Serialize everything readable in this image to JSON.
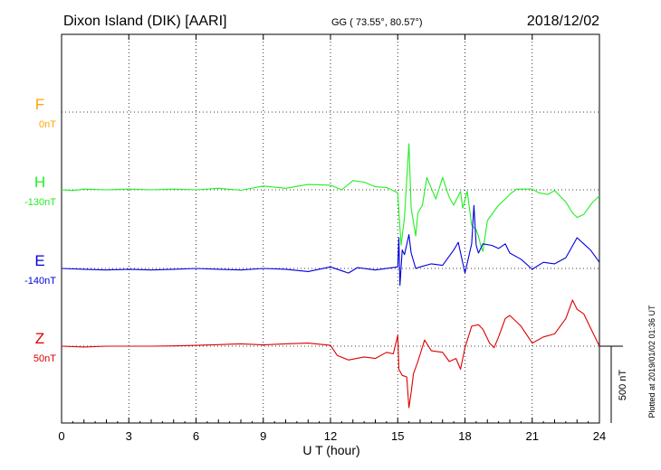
{
  "header": {
    "station": "Dixon Island (DIK)  [AARI]",
    "coords": "GG ( 73.55°,  80.57°)",
    "date": "2018/12/02"
  },
  "footer": {
    "plotted": "Plotted at 2019/01/02 01:36 UT"
  },
  "colors": {
    "F": "#ffa500",
    "H": "#22ee22",
    "E": "#0000dd",
    "Z": "#dd0000"
  },
  "chart_data": {
    "type": "line",
    "xlabel": "U T (hour)",
    "xlim": [
      0,
      24
    ],
    "xticks": [
      "0",
      "3",
      "6",
      "9",
      "12",
      "15",
      "18",
      "21",
      "24"
    ],
    "grid": true,
    "scale_bar": {
      "label": "500 nT",
      "value_nT": 500
    },
    "components": [
      {
        "name": "F",
        "baseline_label": "0nT",
        "baseline_nT": 0,
        "color": "#ffa500",
        "points": []
      },
      {
        "name": "H",
        "baseline_label": "-130nT",
        "baseline_nT": -130,
        "color": "#22ee22",
        "points": [
          [
            0,
            0
          ],
          [
            0.5,
            -5
          ],
          [
            1,
            5
          ],
          [
            2,
            0
          ],
          [
            3,
            5
          ],
          [
            4,
            0
          ],
          [
            5,
            5
          ],
          [
            6,
            0
          ],
          [
            7,
            10
          ],
          [
            8,
            -3
          ],
          [
            9,
            25
          ],
          [
            10,
            10
          ],
          [
            11,
            35
          ],
          [
            12,
            30
          ],
          [
            12.5,
            0
          ],
          [
            13,
            60
          ],
          [
            13.5,
            50
          ],
          [
            14,
            20
          ],
          [
            14.5,
            15
          ],
          [
            15,
            -20
          ],
          [
            15.1,
            -250
          ],
          [
            15.15,
            -360
          ],
          [
            15.3,
            -180
          ],
          [
            15.5,
            300
          ],
          [
            15.6,
            -120
          ],
          [
            15.8,
            -300
          ],
          [
            15.9,
            -150
          ],
          [
            16.1,
            -100
          ],
          [
            16.3,
            80
          ],
          [
            16.7,
            -60
          ],
          [
            17,
            80
          ],
          [
            17.3,
            -50
          ],
          [
            17.5,
            -100
          ],
          [
            17.8,
            -10
          ],
          [
            17.9,
            -120
          ],
          [
            18.1,
            -10
          ],
          [
            18.3,
            -230
          ],
          [
            18.5,
            -260
          ],
          [
            18.6,
            -300
          ],
          [
            18.7,
            -360
          ],
          [
            18.8,
            -400
          ],
          [
            18.9,
            -300
          ],
          [
            19,
            -200
          ],
          [
            19.5,
            -100
          ],
          [
            19.8,
            -60
          ],
          [
            20,
            -30
          ],
          [
            20.3,
            5
          ],
          [
            20.6,
            5
          ],
          [
            21,
            5
          ],
          [
            21.3,
            -20
          ],
          [
            21.7,
            -30
          ],
          [
            22,
            -5
          ],
          [
            22.5,
            -80
          ],
          [
            22.8,
            -150
          ],
          [
            23,
            -180
          ],
          [
            23.3,
            -160
          ],
          [
            23.7,
            -80
          ],
          [
            24,
            -40
          ]
        ]
      },
      {
        "name": "E",
        "baseline_label": "-140nT",
        "baseline_nT": -140,
        "color": "#0000dd",
        "points": [
          [
            0,
            0
          ],
          [
            1,
            -5
          ],
          [
            2,
            -10
          ],
          [
            3,
            -5
          ],
          [
            4,
            -10
          ],
          [
            5,
            -5
          ],
          [
            6,
            0
          ],
          [
            7,
            -5
          ],
          [
            8,
            -10
          ],
          [
            9,
            0
          ],
          [
            10,
            -5
          ],
          [
            11,
            -20
          ],
          [
            12,
            10
          ],
          [
            12.8,
            -30
          ],
          [
            13.2,
            5
          ],
          [
            14,
            -10
          ],
          [
            15,
            10
          ],
          [
            15.05,
            200
          ],
          [
            15.1,
            -110
          ],
          [
            15.2,
            120
          ],
          [
            15.3,
            90
          ],
          [
            15.5,
            220
          ],
          [
            15.6,
            100
          ],
          [
            15.8,
            0
          ],
          [
            16,
            10
          ],
          [
            16.5,
            30
          ],
          [
            17,
            20
          ],
          [
            17.5,
            120
          ],
          [
            17.7,
            170
          ],
          [
            18,
            -30
          ],
          [
            18.3,
            160
          ],
          [
            18.4,
            410
          ],
          [
            18.5,
            150
          ],
          [
            18.6,
            100
          ],
          [
            18.8,
            160
          ],
          [
            19.2,
            150
          ],
          [
            19.5,
            130
          ],
          [
            19.8,
            160
          ],
          [
            20,
            100
          ],
          [
            20.5,
            60
          ],
          [
            21,
            -5
          ],
          [
            21.5,
            40
          ],
          [
            22,
            30
          ],
          [
            22.5,
            70
          ],
          [
            23,
            200
          ],
          [
            23.3,
            160
          ],
          [
            23.6,
            120
          ],
          [
            24,
            40
          ]
        ]
      },
      {
        "name": "Z",
        "baseline_label": "50nT",
        "baseline_nT": 50,
        "color": "#dd0000",
        "points": [
          [
            0,
            0
          ],
          [
            1,
            -5
          ],
          [
            2,
            0
          ],
          [
            3,
            0
          ],
          [
            4,
            0
          ],
          [
            5,
            2
          ],
          [
            6,
            5
          ],
          [
            7,
            10
          ],
          [
            8,
            15
          ],
          [
            9,
            8
          ],
          [
            10,
            15
          ],
          [
            11,
            20
          ],
          [
            12,
            5
          ],
          [
            12.3,
            -60
          ],
          [
            12.8,
            -90
          ],
          [
            13.5,
            -70
          ],
          [
            14,
            -80
          ],
          [
            14.5,
            -40
          ],
          [
            14.8,
            -50
          ],
          [
            15,
            70
          ],
          [
            15.05,
            -150
          ],
          [
            15.2,
            -190
          ],
          [
            15.4,
            -200
          ],
          [
            15.5,
            -400
          ],
          [
            15.6,
            -300
          ],
          [
            15.7,
            -180
          ],
          [
            15.9,
            -100
          ],
          [
            16.2,
            40
          ],
          [
            16.5,
            -30
          ],
          [
            17,
            -40
          ],
          [
            17.3,
            -100
          ],
          [
            17.6,
            -80
          ],
          [
            17.8,
            -150
          ],
          [
            18,
            -10
          ],
          [
            18.3,
            130
          ],
          [
            18.6,
            140
          ],
          [
            18.8,
            110
          ],
          [
            19.1,
            20
          ],
          [
            19.3,
            -10
          ],
          [
            19.5,
            60
          ],
          [
            19.8,
            180
          ],
          [
            20,
            200
          ],
          [
            20.5,
            130
          ],
          [
            21,
            20
          ],
          [
            21.5,
            60
          ],
          [
            22,
            80
          ],
          [
            22.5,
            180
          ],
          [
            22.8,
            300
          ],
          [
            23,
            240
          ],
          [
            23.3,
            210
          ],
          [
            23.5,
            150
          ],
          [
            24,
            0
          ]
        ]
      }
    ]
  }
}
